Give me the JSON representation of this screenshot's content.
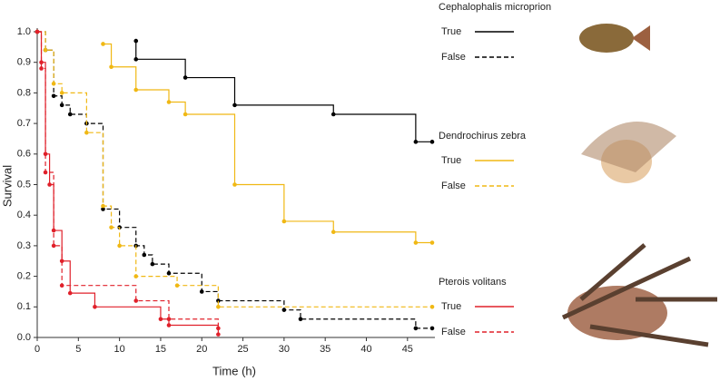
{
  "chart_data": {
    "type": "step",
    "x_label": "Time (h)",
    "y_label": "Survival",
    "xlim": [
      0,
      48
    ],
    "ylim": [
      0,
      1
    ],
    "xticks": [
      0,
      5,
      10,
      15,
      20,
      25,
      30,
      35,
      40,
      45
    ],
    "yticks": [
      {
        "value": 0,
        "label": "0.0"
      },
      {
        "value": 0.1,
        "label": "0.1"
      },
      {
        "value": 0.2,
        "label": "0.2"
      },
      {
        "value": 0.3,
        "label": "0.3"
      },
      {
        "value": 0.4,
        "label": "0.4"
      },
      {
        "value": 0.5,
        "label": "0.5"
      },
      {
        "value": 0.6,
        "label": "0.6"
      },
      {
        "value": 0.7,
        "label": "0.7"
      },
      {
        "value": 0.8,
        "label": "0.8"
      },
      {
        "value": 0.9,
        "label": "0.9"
      },
      {
        "value": 1,
        "label": "1.0"
      }
    ],
    "groups": [
      {
        "name": "Cephalophalis microprion",
        "series": [
          {
            "name": "True",
            "color": "#000000",
            "dashed": false,
            "x": [
              12,
              12,
              18,
              24,
              36,
              46,
              48
            ],
            "values": [
              0.97,
              0.91,
              0.85,
              0.76,
              0.73,
              0.64,
              0.64
            ]
          },
          {
            "name": "False",
            "color": "#000000",
            "dashed": true,
            "x": [
              0,
              1,
              2,
              3,
              4,
              6,
              8,
              10,
              12,
              13,
              14,
              16,
              20,
              22,
              30,
              32,
              46,
              48
            ],
            "values": [
              1.0,
              0.94,
              0.79,
              0.76,
              0.73,
              0.7,
              0.42,
              0.36,
              0.3,
              0.27,
              0.24,
              0.21,
              0.15,
              0.12,
              0.09,
              0.06,
              0.03,
              0.03
            ]
          }
        ]
      },
      {
        "name": "Dendrochirus zebra",
        "series": [
          {
            "name": "True",
            "color": "#f0b814",
            "dashed": false,
            "x": [
              8,
              9,
              12,
              16,
              18,
              24,
              30,
              36,
              46,
              48
            ],
            "values": [
              0.96,
              0.885,
              0.81,
              0.77,
              0.73,
              0.5,
              0.38,
              0.345,
              0.31,
              0.31
            ]
          },
          {
            "name": "False",
            "color": "#f0b814",
            "dashed": true,
            "x": [
              0,
              1,
              2,
              3,
              6,
              8,
              9,
              10,
              12,
              17,
              22,
              48
            ],
            "values": [
              1.0,
              0.94,
              0.83,
              0.8,
              0.67,
              0.43,
              0.36,
              0.3,
              0.2,
              0.17,
              0.1,
              0.1
            ]
          }
        ]
      },
      {
        "name": "Pterois volitans",
        "series": [
          {
            "name": "True",
            "color": "#e0202a",
            "dashed": false,
            "x": [
              0,
              0.5,
              1,
              1.5,
              2,
              3,
              4,
              7,
              15,
              16,
              22
            ],
            "values": [
              1.0,
              0.9,
              0.6,
              0.5,
              0.35,
              0.25,
              0.145,
              0.1,
              0.06,
              0.04,
              0.01
            ]
          },
          {
            "name": "False",
            "color": "#e0202a",
            "dashed": true,
            "x": [
              0,
              0.5,
              1,
              2,
              3,
              12,
              16,
              22
            ],
            "values": [
              1.0,
              0.88,
              0.54,
              0.3,
              0.17,
              0.12,
              0.06,
              0.03
            ]
          }
        ]
      }
    ]
  }
}
